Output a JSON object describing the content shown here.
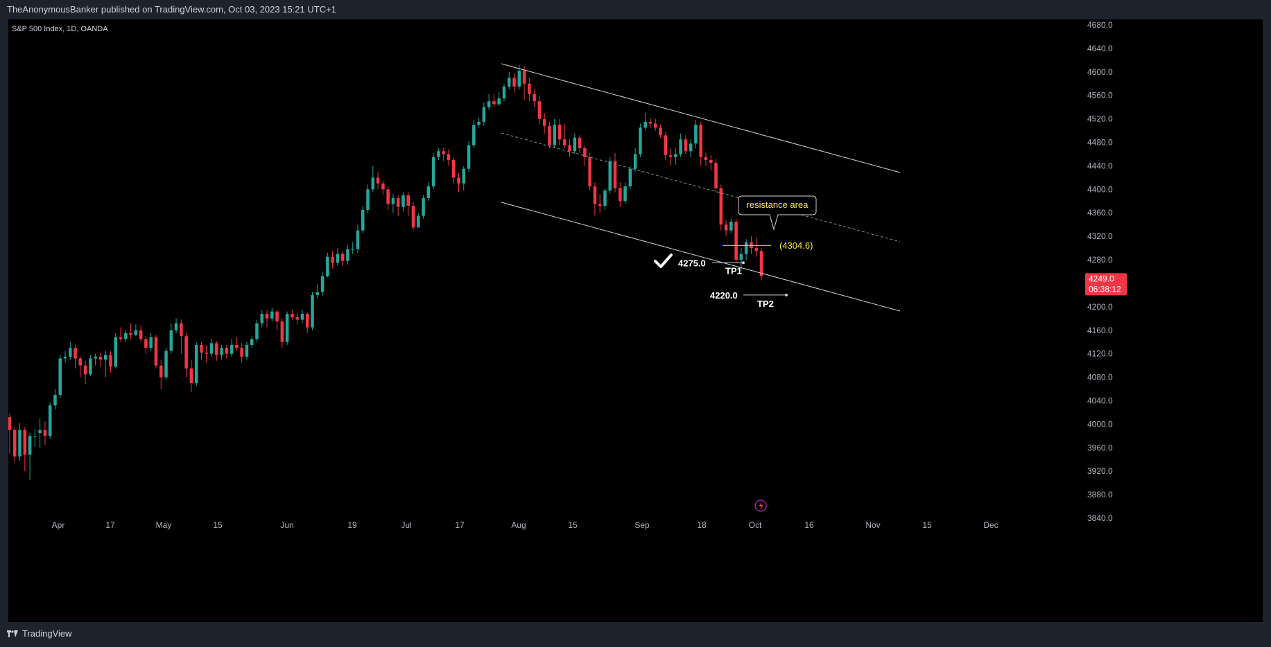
{
  "header": {
    "published_text": "TheAnonymousBanker published on TradingView.com, Oct 03, 2023 15:21 UTC+1"
  },
  "footer": {
    "brand": "TradingView"
  },
  "chart_data": {
    "type": "candlestick",
    "symbol": "S&P 500 Index, 1D, OANDA",
    "ylim": [
      3840,
      4680
    ],
    "y_ticks": [
      "4680.0",
      "4640.0",
      "4600.0",
      "4560.0",
      "4520.0",
      "4480.0",
      "4440.0",
      "4400.0",
      "4360.0",
      "4320.0",
      "4280.0",
      "4240.0",
      "4200.0",
      "4160.0",
      "4120.0",
      "4080.0",
      "4040.0",
      "4000.0",
      "3960.0",
      "3920.0",
      "3880.0",
      "3840.0"
    ],
    "x_ticks": [
      "Apr",
      "17",
      "May",
      "15",
      "Jun",
      "19",
      "Jul",
      "17",
      "Aug",
      "15",
      "Sep",
      "18",
      "Oct",
      "16",
      "Nov",
      "15",
      "Dec"
    ],
    "current_price": {
      "value": "4249.0",
      "countdown": "06:38:12"
    },
    "candles": [
      [
        4012,
        3990,
        4018,
        3950
      ],
      [
        3990,
        3945,
        3995,
        3935
      ],
      [
        3945,
        3990,
        4002,
        3938
      ],
      [
        3990,
        3948,
        3995,
        3920
      ],
      [
        3948,
        3980,
        3985,
        3905
      ],
      [
        3980,
        3980,
        3992,
        3962
      ],
      [
        3985,
        3990,
        4010,
        3960
      ],
      [
        3990,
        3980,
        4005,
        3965
      ],
      [
        3980,
        4032,
        4038,
        3975
      ],
      [
        4032,
        4050,
        4060,
        4025
      ],
      [
        4050,
        4112,
        4118,
        4045
      ],
      [
        4112,
        4115,
        4125,
        4105
      ],
      [
        4115,
        4130,
        4140,
        4110
      ],
      [
        4130,
        4112,
        4135,
        4095
      ],
      [
        4112,
        4100,
        4115,
        4080
      ],
      [
        4100,
        4085,
        4108,
        4068
      ],
      [
        4085,
        4112,
        4118,
        4082
      ],
      [
        4112,
        4115,
        4120,
        4100
      ],
      [
        4115,
        4110,
        4122,
        4098
      ],
      [
        4110,
        4118,
        4125,
        4080
      ],
      [
        4118,
        4098,
        4124,
        4088
      ],
      [
        4098,
        4148,
        4155,
        4095
      ],
      [
        4148,
        4145,
        4165,
        4140
      ],
      [
        4145,
        4155,
        4160,
        4140
      ],
      [
        4155,
        4152,
        4172,
        4145
      ],
      [
        4152,
        4160,
        4170,
        4150
      ],
      [
        4160,
        4145,
        4168,
        4140
      ],
      [
        4145,
        4130,
        4150,
        4120
      ],
      [
        4130,
        4148,
        4155,
        4125
      ],
      [
        4148,
        4100,
        4152,
        4095
      ],
      [
        4100,
        4080,
        4110,
        4060
      ],
      [
        4080,
        4125,
        4130,
        4075
      ],
      [
        4125,
        4160,
        4172,
        4120
      ],
      [
        4160,
        4172,
        4180,
        4155
      ],
      [
        4172,
        4150,
        4178,
        4120
      ],
      [
        4150,
        4095,
        4155,
        4080
      ],
      [
        4095,
        4070,
        4110,
        4055
      ],
      [
        4070,
        4135,
        4140,
        4065
      ],
      [
        4135,
        4122,
        4140,
        4110
      ],
      [
        4122,
        4120,
        4135,
        4105
      ],
      [
        4120,
        4138,
        4145,
        4115
      ],
      [
        4138,
        4118,
        4142,
        4108
      ],
      [
        4118,
        4130,
        4135,
        4110
      ],
      [
        4130,
        4120,
        4135,
        4112
      ],
      [
        4120,
        4135,
        4145,
        4115
      ],
      [
        4135,
        4130,
        4148,
        4125
      ],
      [
        4130,
        4115,
        4138,
        4105
      ],
      [
        4115,
        4135,
        4140,
        4110
      ],
      [
        4135,
        4145,
        4150,
        4130
      ],
      [
        4145,
        4172,
        4178,
        4140
      ],
      [
        4172,
        4188,
        4195,
        4165
      ],
      [
        4188,
        4180,
        4195,
        4165
      ],
      [
        4180,
        4192,
        4198,
        4175
      ],
      [
        4192,
        4175,
        4195,
        4160
      ],
      [
        4175,
        4140,
        4180,
        4130
      ],
      [
        4140,
        4188,
        4192,
        4135
      ],
      [
        4188,
        4182,
        4195,
        4178
      ],
      [
        4182,
        4178,
        4190,
        4170
      ],
      [
        4178,
        4188,
        4195,
        4172
      ],
      [
        4188,
        4165,
        4190,
        4155
      ],
      [
        4165,
        4220,
        4225,
        4160
      ],
      [
        4220,
        4225,
        4238,
        4215
      ],
      [
        4225,
        4252,
        4260,
        4218
      ],
      [
        4252,
        4285,
        4292,
        4250
      ],
      [
        4285,
        4275,
        4295,
        4265
      ],
      [
        4275,
        4290,
        4300,
        4270
      ],
      [
        4290,
        4278,
        4295,
        4270
      ],
      [
        4278,
        4298,
        4305,
        4272
      ],
      [
        4298,
        4298,
        4310,
        4290
      ],
      [
        4298,
        4330,
        4340,
        4292
      ],
      [
        4330,
        4365,
        4372,
        4325
      ],
      [
        4365,
        4400,
        4408,
        4360
      ],
      [
        4400,
        4420,
        4440,
        4395
      ],
      [
        4420,
        4410,
        4430,
        4400
      ],
      [
        4410,
        4400,
        4415,
        4390
      ],
      [
        4400,
        4375,
        4405,
        4365
      ],
      [
        4375,
        4385,
        4392,
        4360
      ],
      [
        4385,
        4370,
        4390,
        4355
      ],
      [
        4370,
        4390,
        4395,
        4362
      ],
      [
        4390,
        4372,
        4395,
        4355
      ],
      [
        4372,
        4335,
        4378,
        4330
      ],
      [
        4335,
        4355,
        4360,
        4340
      ],
      [
        4355,
        4385,
        4390,
        4350
      ],
      [
        4385,
        4405,
        4412,
        4380
      ],
      [
        4405,
        4455,
        4462,
        4400
      ],
      [
        4455,
        4465,
        4470,
        4450
      ],
      [
        4465,
        4460,
        4470,
        4448
      ],
      [
        4460,
        4450,
        4468,
        4440
      ],
      [
        4450,
        4420,
        4455,
        4410
      ],
      [
        4420,
        4410,
        4428,
        4395
      ],
      [
        4410,
        4435,
        4440,
        4398
      ],
      [
        4435,
        4475,
        4482,
        4430
      ],
      [
        4475,
        4510,
        4518,
        4470
      ],
      [
        4510,
        4515,
        4522,
        4505
      ],
      [
        4515,
        4540,
        4548,
        4508
      ],
      [
        4540,
        4550,
        4562,
        4535
      ],
      [
        4550,
        4545,
        4562,
        4540
      ],
      [
        4545,
        4555,
        4566,
        4542
      ],
      [
        4555,
        4575,
        4580,
        4550
      ],
      [
        4575,
        4590,
        4600,
        4570
      ],
      [
        4590,
        4575,
        4598,
        4565
      ],
      [
        4575,
        4602,
        4612,
        4570
      ],
      [
        4602,
        4580,
        4610,
        4552
      ],
      [
        4580,
        4562,
        4590,
        4550
      ],
      [
        4562,
        4550,
        4570,
        4540
      ],
      [
        4550,
        4520,
        4560,
        4510
      ],
      [
        4520,
        4508,
        4530,
        4495
      ],
      [
        4508,
        4475,
        4515,
        4470
      ],
      [
        4475,
        4510,
        4520,
        4470
      ],
      [
        4510,
        4485,
        4520,
        4475
      ],
      [
        4485,
        4475,
        4512,
        4470
      ],
      [
        4475,
        4465,
        4485,
        4455
      ],
      [
        4465,
        4488,
        4495,
        4460
      ],
      [
        4488,
        4470,
        4492,
        4462
      ],
      [
        4470,
        4455,
        4475,
        4440
      ],
      [
        4455,
        4405,
        4462,
        4398
      ],
      [
        4405,
        4375,
        4412,
        4355
      ],
      [
        4375,
        4372,
        4392,
        4360
      ],
      [
        4372,
        4398,
        4402,
        4365
      ],
      [
        4398,
        4448,
        4455,
        4392
      ],
      [
        4448,
        4402,
        4462,
        4395
      ],
      [
        4402,
        4380,
        4412,
        4370
      ],
      [
        4380,
        4405,
        4412,
        4375
      ],
      [
        4405,
        4435,
        4440,
        4400
      ],
      [
        4435,
        4460,
        4470,
        4430
      ],
      [
        4460,
        4505,
        4512,
        4455
      ],
      [
        4505,
        4515,
        4530,
        4500
      ],
      [
        4515,
        4512,
        4522,
        4505
      ],
      [
        4512,
        4505,
        4520,
        4500
      ],
      [
        4505,
        4492,
        4510,
        4488
      ],
      [
        4492,
        4458,
        4498,
        4450
      ],
      [
        4458,
        4455,
        4470,
        4440
      ],
      [
        4455,
        4460,
        4470,
        4442
      ],
      [
        4460,
        4485,
        4495,
        4455
      ],
      [
        4485,
        4465,
        4492,
        4460
      ],
      [
        4465,
        4478,
        4485,
        4455
      ],
      [
        4478,
        4510,
        4518,
        4470
      ],
      [
        4510,
        4455,
        4515,
        4440
      ],
      [
        4455,
        4450,
        4462,
        4440
      ],
      [
        4450,
        4445,
        4458,
        4432
      ],
      [
        4445,
        4402,
        4452,
        4395
      ],
      [
        4402,
        4340,
        4408,
        4330
      ],
      [
        4340,
        4330,
        4348,
        4320
      ],
      [
        4330,
        4345,
        4350,
        4325
      ],
      [
        4345,
        4280,
        4350,
        4275
      ],
      [
        4280,
        4290,
        4300,
        4262
      ],
      [
        4290,
        4310,
        4315,
        4280
      ],
      [
        4310,
        4300,
        4320,
        4290
      ],
      [
        4300,
        4295,
        4318,
        4285
      ],
      [
        4295,
        4252,
        4300,
        4245
      ]
    ]
  },
  "drawings": {
    "resistance_callout": "resistance area",
    "resistance_price": "(4304.6)",
    "tp1_price": "4275.0",
    "tp1_label": "TP1",
    "tp2_price": "4220.0",
    "tp2_label": "TP2",
    "colors": {
      "up": "#26a69a",
      "down": "#f23645",
      "text_yellow": "#ffeb3b",
      "lines": "#d1d4dc"
    }
  }
}
